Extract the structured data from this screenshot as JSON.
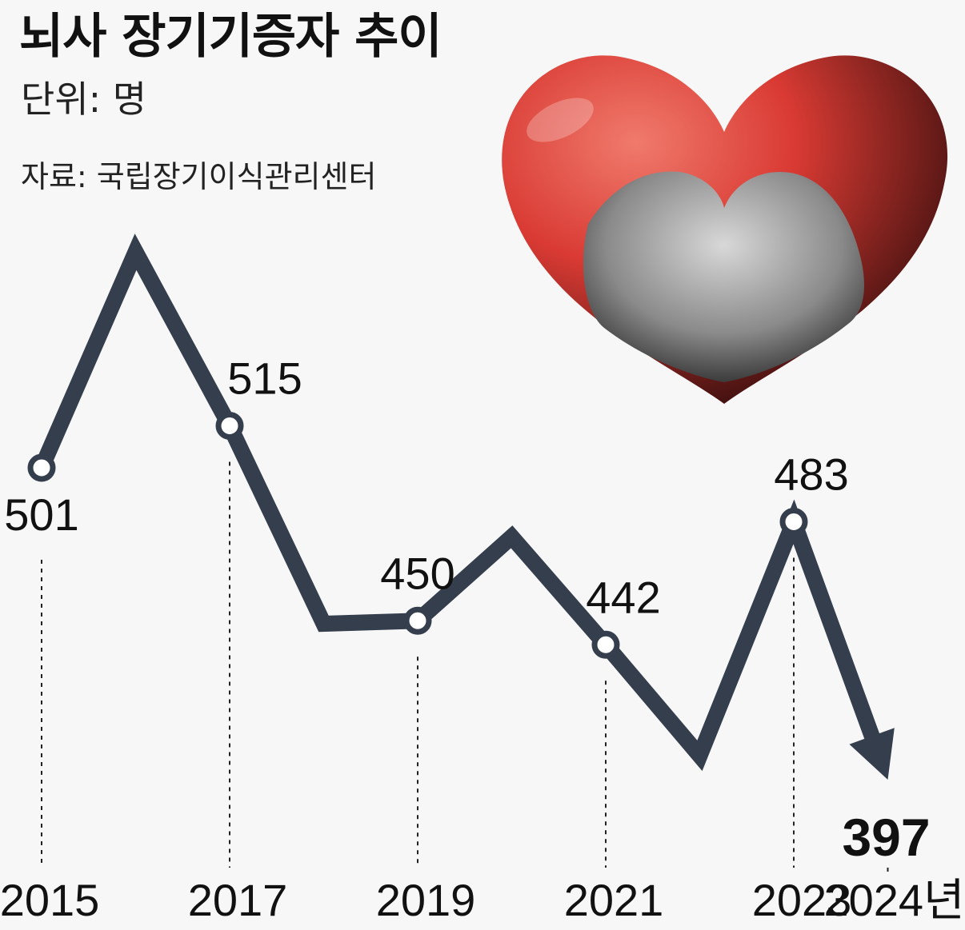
{
  "header": {
    "title": "뇌사 장기기증자 추이",
    "unit": "단위: 명",
    "source": "자료: 국립장기이식관리센터"
  },
  "chart_data": {
    "type": "line",
    "title": "뇌사 장기기증자 추이",
    "unit": "명",
    "x": [
      2015,
      2016,
      2017,
      2018,
      2019,
      2020,
      2021,
      2022,
      2023,
      2024
    ],
    "values": [
      501,
      573,
      515,
      449,
      450,
      478,
      442,
      405,
      483,
      397
    ],
    "labeled_years": [
      2015,
      2017,
      2019,
      2021,
      2023,
      2024
    ],
    "labels": [
      "501",
      "515",
      "450",
      "442",
      "483",
      "397"
    ],
    "xtick_labels": [
      "2015",
      "2017",
      "2019",
      "2021",
      "2023",
      "2024년"
    ],
    "grid": false,
    "colors": {
      "line": "#343e4c",
      "marker_fill": "#ffffff",
      "guide": "#222222"
    }
  },
  "illustration": {
    "icon": "heart-with-hands-icon",
    "colors": {
      "heart_light": "#e24b43",
      "heart_dark": "#5a1a18"
    }
  }
}
